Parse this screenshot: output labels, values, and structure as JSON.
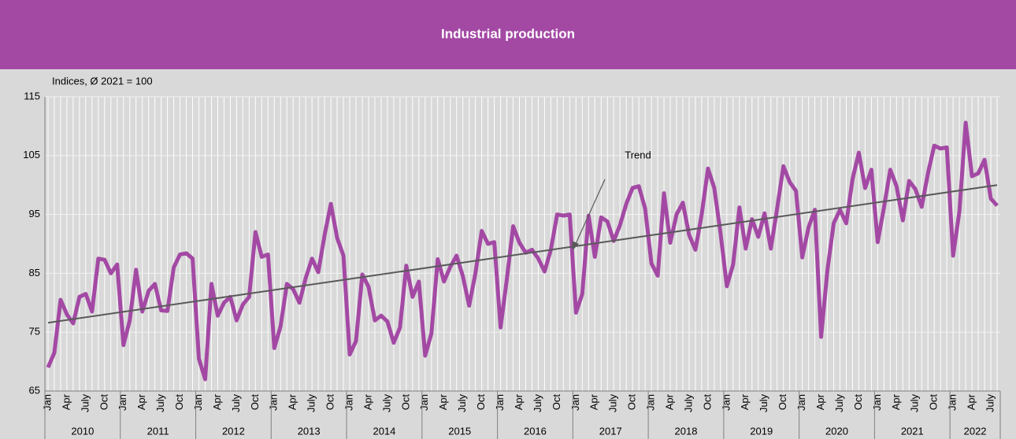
{
  "chart_data": {
    "type": "line",
    "title": "Industrial production",
    "subtitle": "Indices, Ø 2021 = 100",
    "categories": [
      "Jan",
      null,
      null,
      "Apr",
      null,
      null,
      "July",
      null,
      null,
      "Oct",
      null,
      null,
      "Jan",
      null,
      null,
      "Apr",
      null,
      null,
      "July",
      null,
      null,
      "Oct",
      null,
      null,
      "Jan",
      null,
      null,
      "Apr",
      null,
      null,
      "July",
      null,
      null,
      "Oct",
      null,
      null,
      "Jan",
      null,
      null,
      "Apr",
      null,
      null,
      "July",
      null,
      null,
      "Oct",
      null,
      null,
      "Jan",
      null,
      null,
      "Apr",
      null,
      null,
      "July",
      null,
      null,
      "Oct",
      null,
      null,
      "Jan",
      null,
      null,
      "Apr",
      null,
      null,
      "July",
      null,
      null,
      "Oct",
      null,
      null,
      "Jan",
      null,
      null,
      "Apr",
      null,
      null,
      "July",
      null,
      null,
      "Oct",
      null,
      null,
      "Jan",
      null,
      null,
      "Apr",
      null,
      null,
      "July",
      null,
      null,
      "Oct",
      null,
      null,
      "Jan",
      null,
      null,
      "Apr",
      null,
      null,
      "July",
      null,
      null,
      "Oct",
      null,
      null,
      "Jan",
      null,
      null,
      "Apr",
      null,
      null,
      "July",
      null,
      null,
      "Oct",
      null,
      null,
      "Jan",
      null,
      null,
      "Apr",
      null,
      null,
      "July",
      null,
      null,
      "Oct",
      null,
      null,
      "Jan",
      null,
      null,
      "Apr",
      null,
      null,
      "July",
      null,
      null,
      "Oct",
      null,
      null,
      "Jan",
      null,
      null,
      "Apr",
      null,
      null,
      "July",
      null
    ],
    "years": [
      "2010",
      "2011",
      "2012",
      "2013",
      "2014",
      "2015",
      "2016",
      "2017",
      "2018",
      "2019",
      "2020",
      "2021",
      "2022"
    ],
    "series": [
      {
        "name": "Industrial production",
        "color": "#a349a4",
        "values": [
          69,
          71.5,
          80.5,
          78,
          76.5,
          81,
          81.5,
          78.5,
          87.5,
          87.3,
          85,
          86.5,
          72.8,
          77,
          85.6,
          78.5,
          82,
          83.2,
          78.7,
          78.6,
          86,
          88.2,
          88.4,
          87.5,
          70.5,
          67,
          83.2,
          77.8,
          80,
          81,
          77,
          79.7,
          81,
          92,
          87.8,
          88.2,
          72.3,
          76,
          83.2,
          82.3,
          80,
          84.2,
          87.5,
          85.2,
          91.5,
          96.8,
          91,
          88,
          71.2,
          73.5,
          84.8,
          82.7,
          77,
          77.8,
          76.8,
          73.2,
          75.8,
          86.3,
          81,
          83.6,
          71,
          74.8,
          87.4,
          83.6,
          86.1,
          88,
          84.5,
          79.5,
          85,
          92.2,
          90,
          90.3,
          75.8,
          84,
          93,
          90.2,
          88.5,
          89,
          87.5,
          85.3,
          89,
          95,
          94.8,
          95,
          78.3,
          81.5,
          94.8,
          87.8,
          94.5,
          93.8,
          90.5,
          93.2,
          96.8,
          99.5,
          99.8,
          96,
          86.7,
          84.6,
          98.6,
          90.2,
          95,
          97,
          91.5,
          89,
          95,
          102.8,
          99.5,
          91.8,
          82.8,
          86.5,
          96.2,
          89.2,
          94.2,
          91.2,
          95.2,
          89.2,
          96,
          103.2,
          100.5,
          99,
          87.7,
          92.8,
          95.8,
          74.2,
          85.5,
          93.5,
          95.8,
          93.5,
          101,
          105.5,
          99.5,
          102.6,
          90.3,
          96.2,
          102.6,
          99.8,
          94,
          100.7,
          99.3,
          96.3,
          102,
          106.7,
          106.2,
          106.4,
          88,
          95.5,
          110.6,
          101.5,
          102,
          104.3,
          97.7,
          96.5
        ]
      }
    ],
    "trend": {
      "label": "Trend",
      "start": 76.6,
      "end": 100,
      "color": "#595959"
    },
    "ylim": [
      65,
      115
    ],
    "yticks": [
      65,
      75,
      85,
      95,
      105,
      115
    ],
    "grid": true
  }
}
